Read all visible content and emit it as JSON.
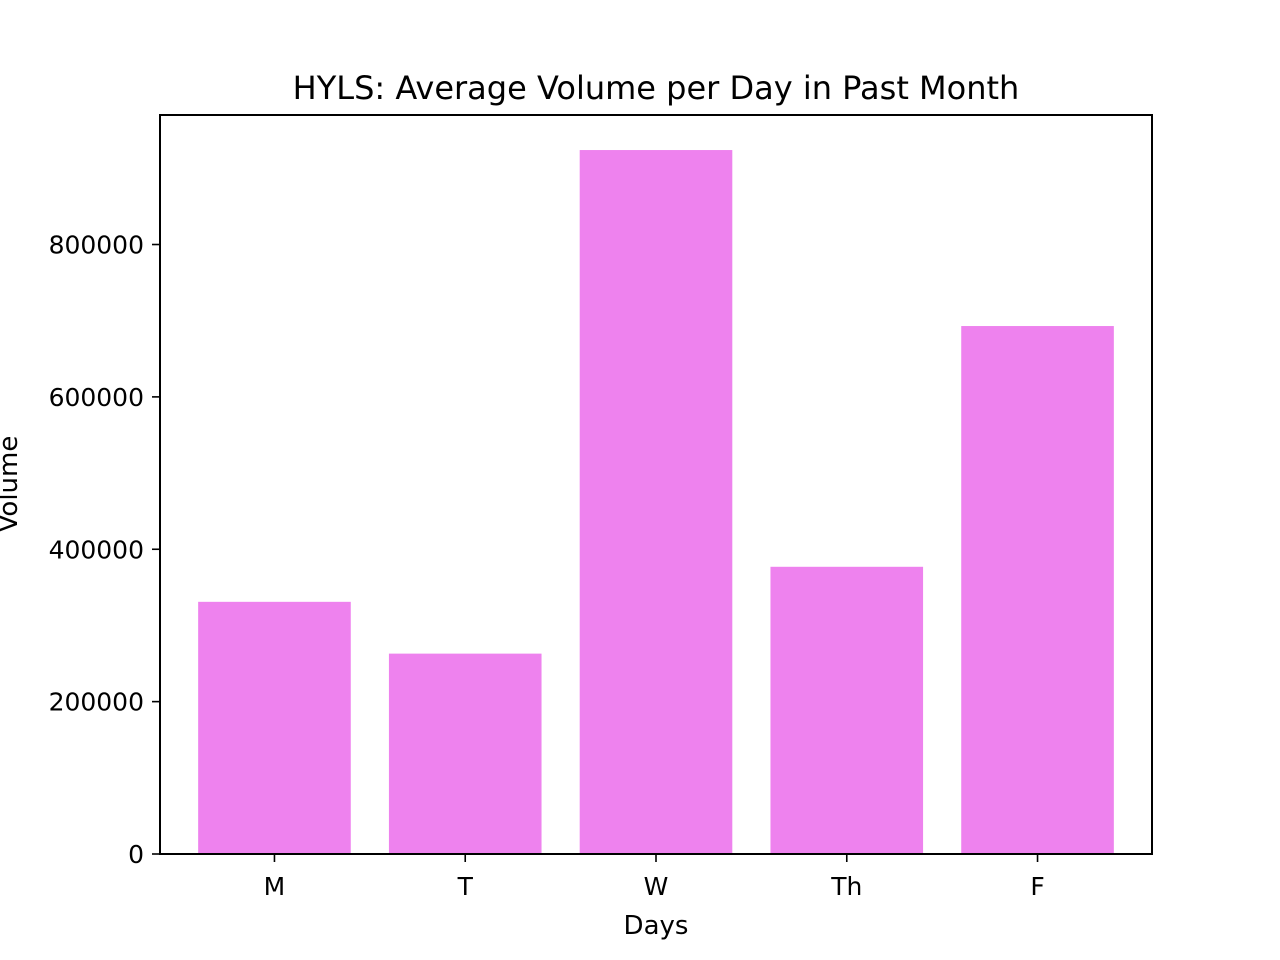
{
  "chart_data": {
    "type": "bar",
    "title": "HYLS: Average Volume per Day in Past Month",
    "xlabel": "Days",
    "ylabel": "Volume",
    "categories": [
      "M",
      "T",
      "W",
      "Th",
      "F"
    ],
    "values": [
      331000,
      263000,
      924000,
      377000,
      693000
    ],
    "ylim": [
      0,
      970000
    ],
    "yticks": [
      0,
      200000,
      400000,
      600000,
      800000
    ],
    "ytick_labels": [
      "0",
      "200000",
      "400000",
      "600000",
      "800000"
    ],
    "bar_color": "#ee82ee",
    "grid": false,
    "legend": false
  }
}
